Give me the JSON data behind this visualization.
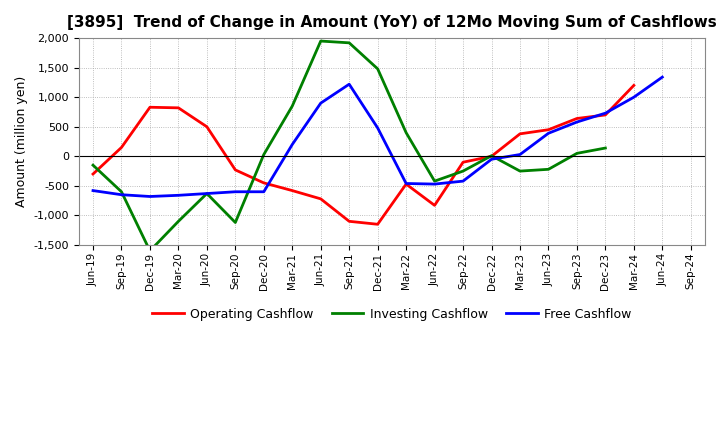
{
  "title": "[3895]  Trend of Change in Amount (YoY) of 12Mo Moving Sum of Cashflows",
  "ylabel": "Amount (million yen)",
  "ylim": [
    -1500,
    2000
  ],
  "yticks": [
    -1500,
    -1000,
    -500,
    0,
    500,
    1000,
    1500,
    2000
  ],
  "labels": [
    "Jun-19",
    "Sep-19",
    "Dec-19",
    "Mar-20",
    "Jun-20",
    "Sep-20",
    "Dec-20",
    "Mar-21",
    "Jun-21",
    "Sep-21",
    "Dec-21",
    "Mar-22",
    "Jun-22",
    "Sep-22",
    "Dec-22",
    "Mar-23",
    "Jun-23",
    "Sep-23",
    "Dec-23",
    "Mar-24",
    "Jun-24",
    "Sep-24"
  ],
  "operating": [
    -300,
    150,
    830,
    820,
    500,
    -230,
    -450,
    -580,
    -720,
    -1100,
    -1150,
    -470,
    -830,
    -100,
    0,
    380,
    450,
    640,
    700,
    1200,
    null,
    null
  ],
  "investing": [
    -150,
    -600,
    -1600,
    -1100,
    -630,
    -1120,
    30,
    850,
    1950,
    1920,
    1480,
    400,
    -420,
    -250,
    10,
    -250,
    -220,
    50,
    140,
    null,
    null,
    null
  ],
  "free": [
    -580,
    -650,
    -680,
    -660,
    -630,
    -600,
    -600,
    200,
    900,
    1220,
    480,
    -460,
    -470,
    -420,
    -50,
    30,
    390,
    580,
    730,
    1000,
    1340,
    null
  ],
  "operating_color": "#ff0000",
  "investing_color": "#008000",
  "free_color": "#0000ff",
  "line_width": 2.0,
  "bg_color": "#ffffff",
  "plot_bg_color": "#ffffff",
  "title_fontsize": 11,
  "ylabel_fontsize": 9,
  "tick_fontsize": 8,
  "xtick_fontsize": 7.5,
  "legend_fontsize": 9
}
